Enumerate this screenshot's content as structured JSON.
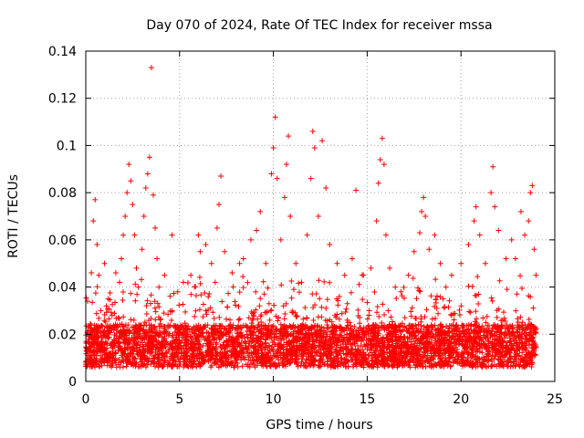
{
  "chart_data": {
    "type": "scatter",
    "title": "Day 070 of 2024, Rate Of TEC Index for receiver mssa",
    "xlabel": "GPS time / hours",
    "ylabel": "ROTI / TECUs",
    "xlim": [
      0,
      25
    ],
    "ylim": [
      0,
      0.14
    ],
    "x_ticks": [
      0,
      5,
      10,
      15,
      20,
      25
    ],
    "x_tick_labels": [
      "0",
      "5",
      "10",
      "15",
      "20",
      "25"
    ],
    "y_ticks": [
      0,
      0.02,
      0.04,
      0.06,
      0.08,
      0.1,
      0.12,
      0.14
    ],
    "y_tick_labels": [
      "0",
      "0.02",
      "0.04",
      "0.06",
      "0.08",
      "0.1",
      "0.12",
      "0.14"
    ],
    "grid": true,
    "marker": "plus",
    "series": [
      {
        "name": "ROTI",
        "color": "#ff0000",
        "points": [
          [
            0.1,
            0.034
          ],
          [
            0.2,
            0.018
          ],
          [
            0.3,
            0.046
          ],
          [
            0.4,
            0.068
          ],
          [
            0.5,
            0.077
          ],
          [
            0.6,
            0.058
          ],
          [
            0.7,
            0.045
          ],
          [
            0.8,
            0.03
          ],
          [
            1.0,
            0.05
          ],
          [
            1.2,
            0.035
          ],
          [
            1.4,
            0.028
          ],
          [
            1.6,
            0.046
          ],
          [
            1.8,
            0.042
          ],
          [
            1.9,
            0.052
          ],
          [
            2.0,
            0.062
          ],
          [
            2.1,
            0.07
          ],
          [
            2.2,
            0.08
          ],
          [
            2.3,
            0.092
          ],
          [
            2.4,
            0.085
          ],
          [
            2.5,
            0.075
          ],
          [
            2.6,
            0.062
          ],
          [
            2.7,
            0.048
          ],
          [
            2.8,
            0.04
          ],
          [
            3.0,
            0.056
          ],
          [
            3.1,
            0.07
          ],
          [
            3.2,
            0.082
          ],
          [
            3.3,
            0.088
          ],
          [
            3.4,
            0.095
          ],
          [
            3.5,
            0.133
          ],
          [
            3.6,
            0.079
          ],
          [
            3.7,
            0.065
          ],
          [
            3.8,
            0.052
          ],
          [
            3.9,
            0.04
          ],
          [
            4.2,
            0.045
          ],
          [
            4.6,
            0.062
          ],
          [
            4.9,
            0.038
          ],
          [
            5.2,
            0.042
          ],
          [
            5.6,
            0.045
          ],
          [
            6.0,
            0.062
          ],
          [
            6.1,
            0.055
          ],
          [
            6.4,
            0.058
          ],
          [
            6.7,
            0.05
          ],
          [
            6.9,
            0.042
          ],
          [
            7.0,
            0.065
          ],
          [
            7.1,
            0.075
          ],
          [
            7.2,
            0.087
          ],
          [
            7.4,
            0.055
          ],
          [
            7.8,
            0.046
          ],
          [
            8.2,
            0.05
          ],
          [
            8.4,
            0.052
          ],
          [
            8.8,
            0.06
          ],
          [
            9.1,
            0.064
          ],
          [
            9.3,
            0.072
          ],
          [
            9.6,
            0.05
          ],
          [
            9.9,
            0.088
          ],
          [
            10.0,
            0.099
          ],
          [
            10.1,
            0.112
          ],
          [
            10.2,
            0.086
          ],
          [
            10.4,
            0.06
          ],
          [
            10.6,
            0.078
          ],
          [
            10.7,
            0.092
          ],
          [
            10.8,
            0.104
          ],
          [
            10.9,
            0.07
          ],
          [
            11.2,
            0.05
          ],
          [
            11.5,
            0.042
          ],
          [
            11.8,
            0.062
          ],
          [
            12.0,
            0.086
          ],
          [
            12.1,
            0.106
          ],
          [
            12.2,
            0.099
          ],
          [
            12.4,
            0.07
          ],
          [
            12.6,
            0.102
          ],
          [
            12.8,
            0.082
          ],
          [
            13.0,
            0.058
          ],
          [
            13.4,
            0.05
          ],
          [
            13.8,
            0.045
          ],
          [
            14.2,
            0.052
          ],
          [
            14.4,
            0.081
          ],
          [
            14.8,
            0.045
          ],
          [
            15.2,
            0.048
          ],
          [
            15.5,
            0.068
          ],
          [
            15.6,
            0.084
          ],
          [
            15.7,
            0.094
          ],
          [
            15.8,
            0.103
          ],
          [
            15.9,
            0.092
          ],
          [
            16.0,
            0.062
          ],
          [
            16.2,
            0.048
          ],
          [
            16.5,
            0.04
          ],
          [
            16.8,
            0.038
          ],
          [
            17.2,
            0.045
          ],
          [
            17.5,
            0.055
          ],
          [
            17.8,
            0.063
          ],
          [
            17.9,
            0.072
          ],
          [
            18.0,
            0.078
          ],
          [
            18.1,
            0.07
          ],
          [
            18.3,
            0.056
          ],
          [
            18.6,
            0.062
          ],
          [
            18.9,
            0.05
          ],
          [
            19.2,
            0.04
          ],
          [
            19.5,
            0.045
          ],
          [
            20.0,
            0.05
          ],
          [
            20.4,
            0.058
          ],
          [
            20.7,
            0.068
          ],
          [
            20.8,
            0.074
          ],
          [
            21.0,
            0.062
          ],
          [
            21.3,
            0.05
          ],
          [
            21.6,
            0.08
          ],
          [
            21.7,
            0.091
          ],
          [
            21.8,
            0.074
          ],
          [
            22.0,
            0.064
          ],
          [
            22.4,
            0.052
          ],
          [
            22.7,
            0.06
          ],
          [
            22.9,
            0.052
          ],
          [
            23.2,
            0.072
          ],
          [
            23.4,
            0.062
          ],
          [
            23.6,
            0.068
          ],
          [
            23.7,
            0.08
          ],
          [
            23.8,
            0.083
          ],
          [
            23.9,
            0.056
          ],
          [
            24.0,
            0.045
          ]
        ]
      }
    ]
  }
}
